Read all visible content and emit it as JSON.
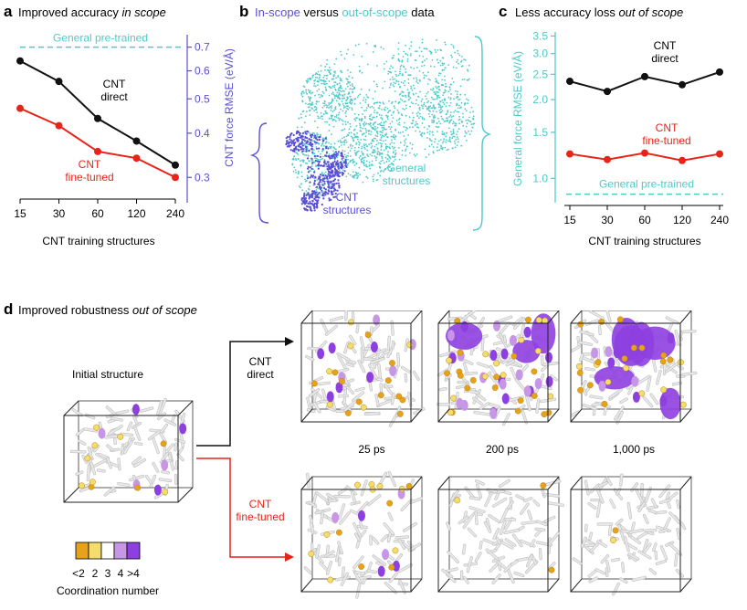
{
  "colors": {
    "direct": "#111111",
    "finetuned": "#e8241a",
    "pretrained": "#4fc9c9",
    "inscope": "#5a4fd3",
    "bond": "#e9e9e9",
    "cn_lt2": "#e6a21a",
    "cn_2": "#f4dd6c",
    "cn_3": "#ffffff",
    "cn_4": "#c796e6",
    "cn_gt4": "#8e3fe0"
  },
  "panel_a": {
    "letter": "a",
    "title_prefix": "Improved accuracy ",
    "title_italic": "in scope",
    "pretrained_label": "General pre-trained",
    "direct_label_1": "CNT",
    "direct_label_2": "direct",
    "finetuned_label_1": "CNT",
    "finetuned_label_2": "fine-tuned",
    "xlabel": "CNT training structures",
    "ylabel": "CNT force RMSE (eV/Å)"
  },
  "panel_b": {
    "letter": "b",
    "title_inscope": "In-scope",
    "title_versus": " versus ",
    "title_outscope": "out-of-scope",
    "title_data": " data",
    "cnt_label_1": "CNT",
    "cnt_label_2": "structures",
    "general_label_1": "General",
    "general_label_2": "structures"
  },
  "panel_c": {
    "letter": "c",
    "title_prefix": "Less accuracy loss ",
    "title_italic": "out of scope",
    "direct_label_1": "CNT",
    "direct_label_2": "direct",
    "finetuned_label_1": "CNT",
    "finetuned_label_2": "fine-tuned",
    "pretrained_label": "General pre-trained",
    "xlabel": "CNT training structures",
    "ylabel": "General force RMSE (eV/Å)"
  },
  "panel_d": {
    "letter": "d",
    "title_prefix": "Improved robustness ",
    "title_italic": "out of scope",
    "initial_label": "Initial structure",
    "direct_label_1": "CNT",
    "direct_label_2": "direct",
    "finetuned_label_1": "CNT",
    "finetuned_label_2": "fine-tuned",
    "times": [
      "25 ps",
      "200 ps",
      "1,000 ps"
    ],
    "legend_ticks": [
      "<2",
      "2",
      "3",
      "4",
      ">4"
    ],
    "legend_title": "Coordination number"
  },
  "chart_data": [
    {
      "type": "line",
      "panel": "a",
      "categories": [
        "15",
        "30",
        "60",
        "120",
        "240"
      ],
      "series": [
        {
          "name": "CNT direct",
          "values": [
            0.64,
            0.56,
            0.44,
            0.38,
            0.325
          ]
        },
        {
          "name": "CNT fine-tuned",
          "values": [
            0.47,
            0.42,
            0.355,
            0.34,
            0.3
          ]
        },
        {
          "name": "General pre-trained",
          "values": [
            0.7,
            0.7,
            0.7,
            0.7,
            0.7
          ]
        }
      ],
      "xlabel": "CNT training structures",
      "ylabel": "CNT force RMSE (eV/Å)",
      "yticks": [
        "0.3",
        "0.4",
        "0.5",
        "0.6",
        "0.7"
      ],
      "ylim": [
        0.27,
        0.75
      ],
      "yscale": "log",
      "grid": false
    },
    {
      "type": "line",
      "panel": "c",
      "categories": [
        "15",
        "30",
        "60",
        "120",
        "240"
      ],
      "series": [
        {
          "name": "CNT direct",
          "values": [
            2.35,
            2.15,
            2.45,
            2.28,
            2.55
          ]
        },
        {
          "name": "CNT fine-tuned",
          "values": [
            1.24,
            1.18,
            1.25,
            1.17,
            1.24
          ]
        },
        {
          "name": "General pre-trained",
          "values": [
            0.87,
            0.87,
            0.87,
            0.87,
            0.87
          ]
        }
      ],
      "xlabel": "CNT training structures",
      "ylabel": "General force RMSE (eV/Å)",
      "yticks": [
        "1.0",
        "1.5",
        "2.0",
        "2.5",
        "3.0",
        "3.5"
      ],
      "ylim": [
        0.82,
        3.6
      ],
      "yscale": "log",
      "grid": false
    }
  ]
}
